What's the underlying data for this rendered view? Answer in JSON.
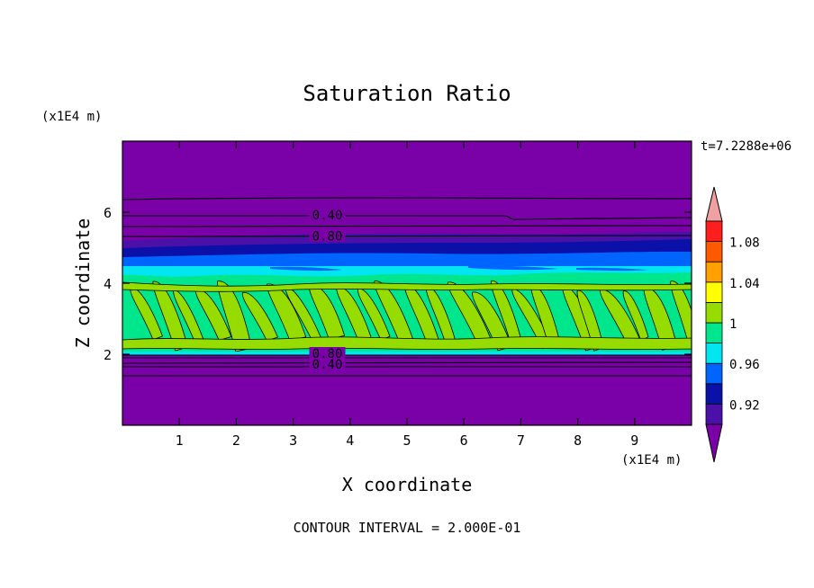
{
  "chart_data": {
    "type": "contour",
    "title": "Saturation Ratio",
    "xlabel": "X coordinate",
    "ylabel": "Z coordinate",
    "x_unit": "(x1E4 m)",
    "y_unit": "(x1E4 m)",
    "time_label": "t=7.2288e+06",
    "footer": "CONTOUR INTERVAL = 2.000E-01",
    "xlim": [
      0,
      10
    ],
    "ylim": [
      0,
      8
    ],
    "x_ticks": [
      "1",
      "2",
      "3",
      "4",
      "5",
      "6",
      "7",
      "8",
      "9"
    ],
    "y_ticks": [
      "2",
      "4",
      "6"
    ],
    "contour_labels": [
      {
        "text": "0.40",
        "x": 3.6,
        "z": 5.9
      },
      {
        "text": "0.80",
        "x": 3.6,
        "z": 5.3
      },
      {
        "text": "0.80",
        "x": 3.6,
        "z": 2.0
      },
      {
        "text": "0.40",
        "x": 3.6,
        "z": 1.7
      }
    ],
    "colorbar": {
      "tick_labels": [
        "0.92",
        "0.96",
        "1",
        "1.04",
        "1.08"
      ],
      "bands": [
        {
          "from": null,
          "to": 0.9,
          "color": "#7a00a8"
        },
        {
          "from": 0.9,
          "to": 0.92,
          "color": "#4a10a8"
        },
        {
          "from": 0.92,
          "to": 0.94,
          "color": "#0a10a8"
        },
        {
          "from": 0.94,
          "to": 0.96,
          "color": "#0064ff"
        },
        {
          "from": 0.96,
          "to": 0.98,
          "color": "#00e6f0"
        },
        {
          "from": 0.98,
          "to": 1.0,
          "color": "#00e68c"
        },
        {
          "from": 1.0,
          "to": 1.02,
          "color": "#96dc00"
        },
        {
          "from": 1.02,
          "to": 1.04,
          "color": "#ffff00"
        },
        {
          "from": 1.04,
          "to": 1.06,
          "color": "#ffa000"
        },
        {
          "from": 1.06,
          "to": 1.08,
          "color": "#ff5a00"
        },
        {
          "from": 1.08,
          "to": 1.1,
          "color": "#ff1e1e"
        },
        {
          "from": 1.1,
          "to": null,
          "color": "#f0a0a0"
        }
      ]
    }
  }
}
